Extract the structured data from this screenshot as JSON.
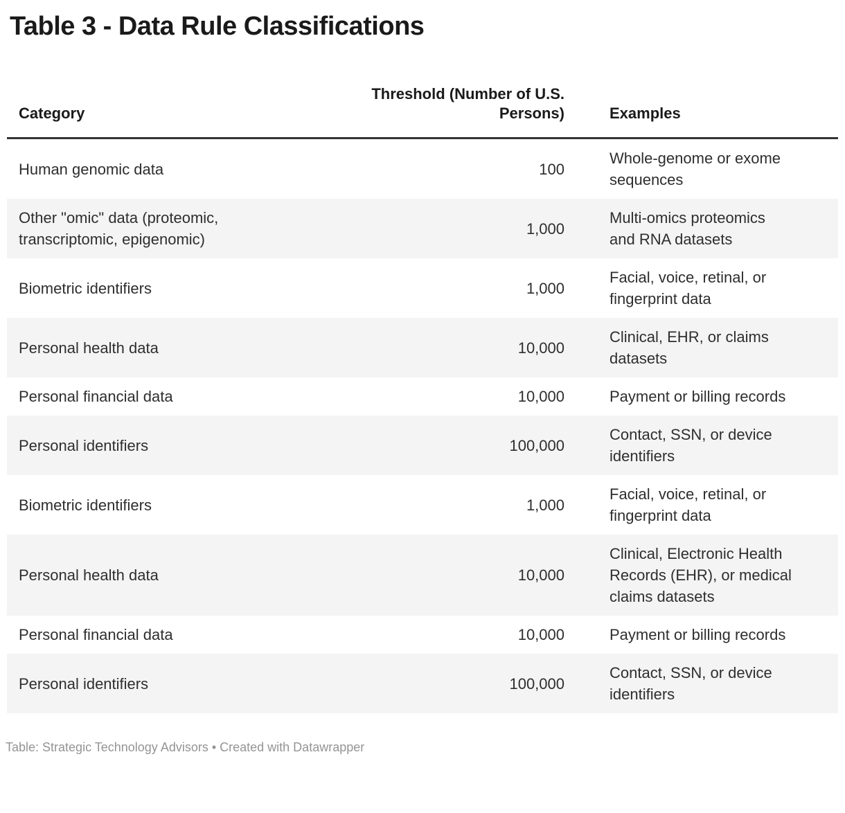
{
  "title": "Table 3 - Data Rule Classifications",
  "chart_data": {
    "type": "table",
    "title": "Table 3 - Data Rule Classifications",
    "columns": [
      "Category",
      "Threshold (Number of U.S. Persons)",
      "Examples"
    ],
    "rows": [
      [
        "Human genomic data",
        "100",
        "Whole-genome or exome sequences"
      ],
      [
        "Other \"omic\" data (proteomic, transcriptomic, epigenomic)",
        "1,000",
        "Multi-omics proteomics and RNA datasets"
      ],
      [
        "Biometric identifiers",
        "1,000",
        "Facial, voice, retinal, or fingerprint data"
      ],
      [
        "Personal health data",
        "10,000",
        "Clinical, EHR, or claims datasets"
      ],
      [
        "Personal financial data",
        "10,000",
        "Payment or billing records"
      ],
      [
        "Personal identifiers",
        "100,000",
        "Contact, SSN, or device identifiers"
      ],
      [
        "Biometric identifiers",
        "1,000",
        "Facial, voice, retinal, or fingerprint data"
      ],
      [
        "Personal health data",
        "10,000",
        "Clinical, Electronic Health Records (EHR), or medical claims datasets"
      ],
      [
        "Personal financial data",
        "10,000",
        "Payment or billing records"
      ],
      [
        "Personal identifiers",
        "100,000",
        "Contact, SSN, or device identifiers"
      ]
    ],
    "layout_hints": {
      "zebra_striping": true,
      "stripe_starts_on_row_index": 1,
      "threshold_column_align": "right",
      "header_rule": "3px solid"
    }
  },
  "footer": {
    "source_label": "Table: Strategic Technology Advisors • Created with Datawrapper"
  },
  "colors": {
    "title_text": "#1a1a1a",
    "body_text": "#2e2e2e",
    "stripe_background": "#f4f4f4",
    "header_rule": "#333333",
    "footer_text": "#949494",
    "page_background": "#ffffff"
  }
}
